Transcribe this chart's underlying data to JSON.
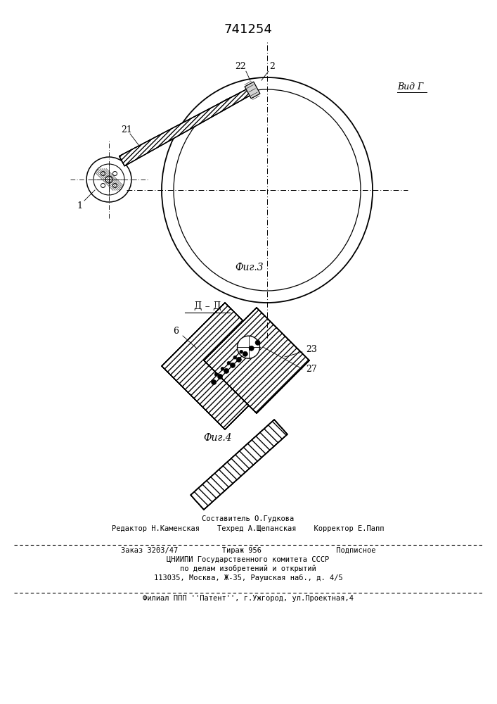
{
  "title": "741254",
  "fig_width": 7.07,
  "fig_height": 10.0,
  "bg_color": "#ffffff",
  "footer": {
    "line1": "Составитель О.Гудкова",
    "line2": "Редактор Н.Каменская    Техред А.Щепанская    Корректор Е.Папп",
    "line3": "Заказ 3203/47          Тираж 956                 Подписное",
    "line4": "ЦНИИПИ Государственного комитета СССР",
    "line5": "по делам изобретений и открытий",
    "line6": "113035, Москва, Ж-35, Раушская наб., д. 4/5",
    "line7": "Филиал ППП ''Патент'', г.Ужгород, ул.Проектная,4"
  },
  "view1_label": "Вид Г",
  "fig3_label": "Фиг.3",
  "fig4_label": "Фиг.4",
  "section_label": "Д – Д",
  "numbers": {
    "n1": "1",
    "n2": "2",
    "n21": "21",
    "n22": "22",
    "n6": "6",
    "n23": "23",
    "n27": "27"
  }
}
